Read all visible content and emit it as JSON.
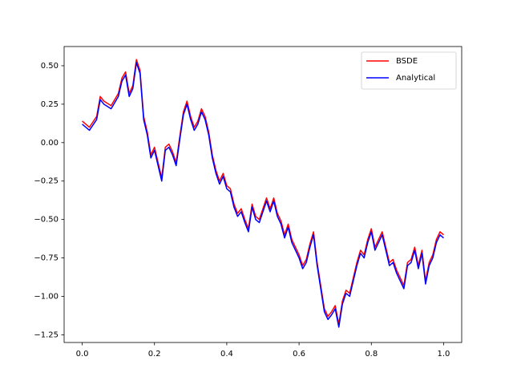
{
  "chart_data": {
    "type": "line",
    "x": [
      0,
      0.02,
      0.04,
      0.05,
      0.06,
      0.08,
      0.1,
      0.11,
      0.12,
      0.13,
      0.14,
      0.15,
      0.16,
      0.17,
      0.18,
      0.19,
      0.2,
      0.21,
      0.22,
      0.23,
      0.24,
      0.25,
      0.26,
      0.27,
      0.28,
      0.29,
      0.3,
      0.31,
      0.32,
      0.33,
      0.34,
      0.35,
      0.36,
      0.37,
      0.38,
      0.39,
      0.4,
      0.41,
      0.42,
      0.43,
      0.44,
      0.45,
      0.46,
      0.47,
      0.48,
      0.49,
      0.5,
      0.51,
      0.52,
      0.53,
      0.54,
      0.55,
      0.56,
      0.57,
      0.58,
      0.59,
      0.6,
      0.61,
      0.62,
      0.63,
      0.64,
      0.65,
      0.66,
      0.67,
      0.68,
      0.69,
      0.7,
      0.71,
      0.72,
      0.73,
      0.74,
      0.75,
      0.76,
      0.77,
      0.78,
      0.79,
      0.8,
      0.81,
      0.82,
      0.83,
      0.84,
      0.85,
      0.86,
      0.87,
      0.88,
      0.89,
      0.9,
      0.91,
      0.92,
      0.93,
      0.94,
      0.95,
      0.96,
      0.97,
      0.98,
      0.99,
      1.0
    ],
    "series": [
      {
        "name": "BSDE",
        "color": "#ff0000",
        "values": [
          0.14,
          0.1,
          0.17,
          0.3,
          0.27,
          0.24,
          0.32,
          0.42,
          0.46,
          0.32,
          0.37,
          0.54,
          0.47,
          0.17,
          0.07,
          -0.08,
          -0.03,
          -0.13,
          -0.23,
          -0.03,
          -0.01,
          -0.06,
          -0.13,
          0.04,
          0.2,
          0.27,
          0.17,
          0.1,
          0.14,
          0.22,
          0.17,
          0.07,
          -0.08,
          -0.18,
          -0.25,
          -0.2,
          -0.28,
          -0.3,
          -0.4,
          -0.46,
          -0.43,
          -0.5,
          -0.56,
          -0.4,
          -0.48,
          -0.5,
          -0.43,
          -0.36,
          -0.43,
          -0.36,
          -0.46,
          -0.51,
          -0.6,
          -0.53,
          -0.63,
          -0.68,
          -0.73,
          -0.8,
          -0.76,
          -0.66,
          -0.58,
          -0.78,
          -0.93,
          -1.08,
          -1.13,
          -1.1,
          -1.06,
          -1.18,
          -1.03,
          -0.96,
          -0.98,
          -0.88,
          -0.78,
          -0.7,
          -0.73,
          -0.63,
          -0.56,
          -0.68,
          -0.63,
          -0.58,
          -0.68,
          -0.78,
          -0.76,
          -0.83,
          -0.88,
          -0.93,
          -0.78,
          -0.76,
          -0.68,
          -0.8,
          -0.7,
          -0.9,
          -0.78,
          -0.73,
          -0.63,
          -0.58,
          -0.6
        ]
      },
      {
        "name": "Analytical",
        "color": "#0000ff",
        "values": [
          0.12,
          0.08,
          0.15,
          0.28,
          0.25,
          0.22,
          0.3,
          0.4,
          0.44,
          0.3,
          0.35,
          0.52,
          0.45,
          0.15,
          0.05,
          -0.1,
          -0.05,
          -0.15,
          -0.25,
          -0.05,
          -0.03,
          -0.08,
          -0.15,
          0.02,
          0.18,
          0.25,
          0.15,
          0.08,
          0.12,
          0.2,
          0.15,
          0.05,
          -0.1,
          -0.2,
          -0.27,
          -0.22,
          -0.3,
          -0.32,
          -0.42,
          -0.48,
          -0.45,
          -0.52,
          -0.58,
          -0.42,
          -0.5,
          -0.52,
          -0.45,
          -0.38,
          -0.45,
          -0.38,
          -0.48,
          -0.53,
          -0.62,
          -0.55,
          -0.65,
          -0.7,
          -0.75,
          -0.82,
          -0.78,
          -0.68,
          -0.6,
          -0.8,
          -0.95,
          -1.1,
          -1.15,
          -1.12,
          -1.08,
          -1.2,
          -1.05,
          -0.98,
          -1.0,
          -0.9,
          -0.8,
          -0.72,
          -0.75,
          -0.65,
          -0.58,
          -0.7,
          -0.65,
          -0.6,
          -0.7,
          -0.8,
          -0.78,
          -0.85,
          -0.9,
          -0.95,
          -0.8,
          -0.78,
          -0.7,
          -0.82,
          -0.72,
          -0.92,
          -0.8,
          -0.75,
          -0.65,
          -0.6,
          -0.62
        ]
      }
    ],
    "xlim": [
      -0.05,
      1.05
    ],
    "xticks": [
      {
        "value": 0,
        "label": "0.0"
      },
      0.2,
      0.4,
      0.6,
      0.8,
      {
        "value": 1,
        "label": "1.0"
      }
    ],
    "ylim": [
      -1.3,
      0.625
    ],
    "yticks": [
      {
        "value": 0.5,
        "label": "0.50"
      },
      0.25,
      {
        "value": 0,
        "label": "0.00"
      },
      {
        "value": -0.25,
        "label": "−0.25"
      },
      {
        "value": -0.5,
        "label": "−0.50"
      },
      {
        "value": -0.75,
        "label": "−0.75"
      },
      {
        "value": -1,
        "label": "−1.00"
      },
      {
        "value": -1.25,
        "label": "−1.25"
      }
    ],
    "legend": "upper right"
  }
}
